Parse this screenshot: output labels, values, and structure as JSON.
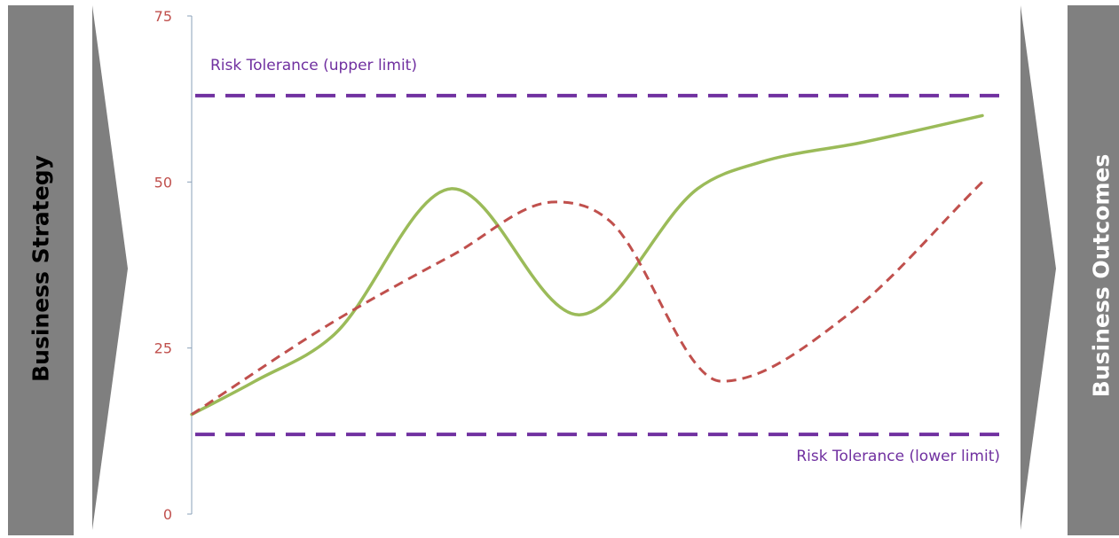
{
  "sidebar_left": {
    "label": "Business Strategy"
  },
  "sidebar_right": {
    "label": "Business Outcomes"
  },
  "colors": {
    "sidebar": "#808080",
    "arrow": "#7f7f7f",
    "tick": "#c0504d",
    "axis": "#8aa0b8",
    "series_solid": "#9bbb59",
    "series_dashed": "#c0504d",
    "tolerance": "#7030a0"
  },
  "chart_data": {
    "type": "line",
    "ylim": [
      0,
      75
    ],
    "yticks": [
      0,
      25,
      50,
      75
    ],
    "xlim": [
      0,
      10
    ],
    "grid": false,
    "series": [
      {
        "style": "solid",
        "x": [
          0,
          0.8,
          1.8,
          3.3,
          4.9,
          6.4,
          7.2,
          8.5,
          10
        ],
        "y": [
          15,
          20,
          27,
          49,
          30,
          49,
          53,
          56,
          60
        ]
      },
      {
        "style": "dashed",
        "x": [
          0,
          1.8,
          3.3,
          4.6,
          5.3,
          6.7,
          8.3,
          10
        ],
        "y": [
          15,
          29,
          39,
          47,
          44,
          20,
          30,
          50
        ]
      }
    ],
    "reference_lines": [
      {
        "y": 63,
        "label": "Risk Tolerance (upper limit)",
        "label_position": "top-left"
      },
      {
        "y": 12,
        "label": "Risk Tolerance (lower limit)",
        "label_position": "bottom-right"
      }
    ]
  }
}
